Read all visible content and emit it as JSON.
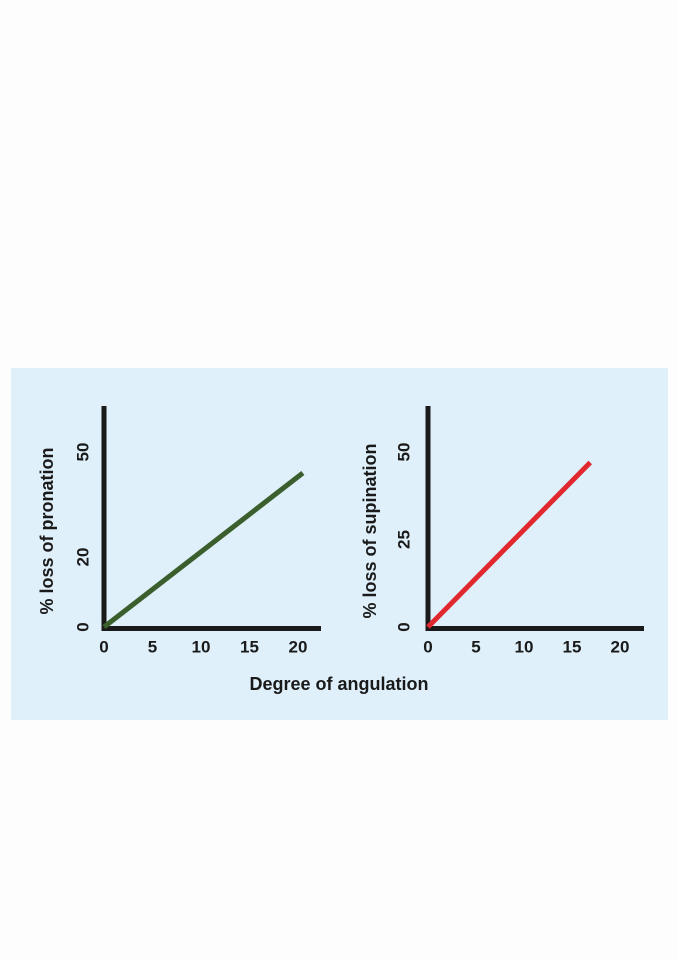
{
  "figure": {
    "x_common_label": "Degree of angulation",
    "background": "#dff0fa"
  },
  "chart_data": [
    {
      "type": "line",
      "title": "",
      "xlabel": "Degree of angulation",
      "ylabel": "% loss of pronation",
      "x_ticks": [
        "0",
        "5",
        "10",
        "15",
        "20"
      ],
      "y_ticks": [
        "0",
        "20",
        "50"
      ],
      "x_tick_values": [
        0,
        5,
        10,
        15,
        20
      ],
      "y_tick_values": [
        0,
        20,
        50
      ],
      "xlim": [
        0,
        22
      ],
      "ylim": [
        0,
        60
      ],
      "grid": false,
      "series": [
        {
          "color": "#3a5e2c",
          "x": [
            0,
            20.5
          ],
          "y": [
            0,
            44
          ]
        }
      ]
    },
    {
      "type": "line",
      "title": "",
      "xlabel": "Degree of angulation",
      "ylabel": "% loss of supination",
      "x_ticks": [
        "0",
        "5",
        "10",
        "15",
        "20"
      ],
      "y_ticks": [
        "0",
        "25",
        "50"
      ],
      "x_tick_values": [
        0,
        5,
        10,
        15,
        20
      ],
      "y_tick_values": [
        0,
        25,
        50
      ],
      "xlim": [
        0,
        22
      ],
      "ylim": [
        0,
        60
      ],
      "grid": false,
      "series": [
        {
          "color": "#e0282e",
          "x": [
            0,
            16.9
          ],
          "y": [
            0,
            47
          ]
        }
      ]
    }
  ]
}
